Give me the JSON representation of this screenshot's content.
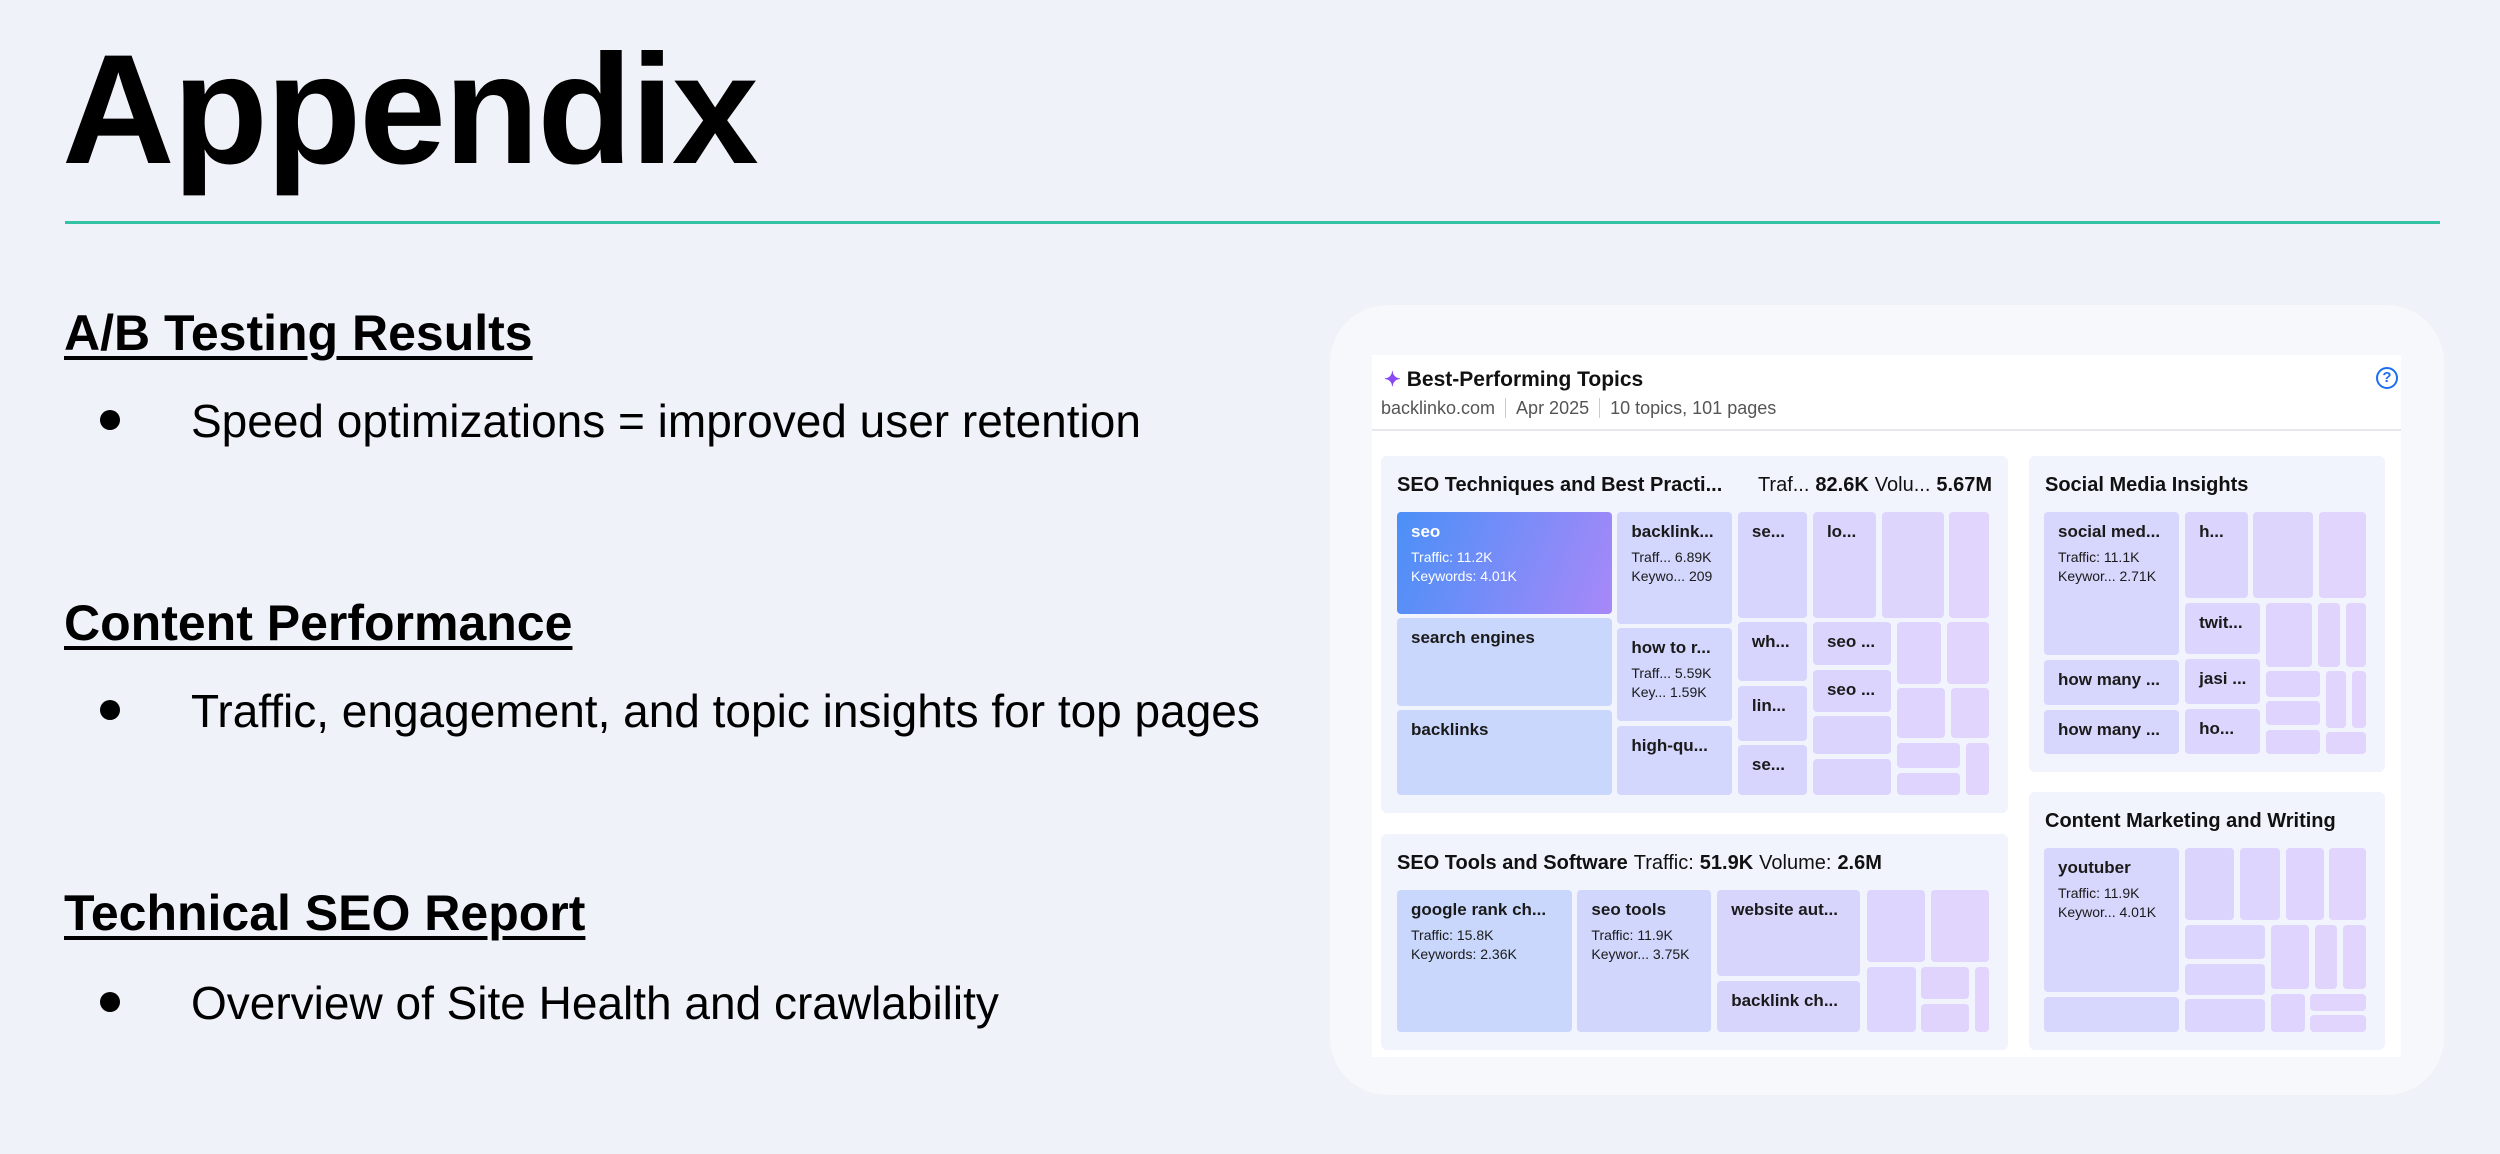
{
  "slide": {
    "title": "Appendix",
    "accent_color": "#35c2a4",
    "sections": [
      {
        "heading": "A/B Testing Results",
        "bullet": "Speed optimizations = improved user retention"
      },
      {
        "heading": "Content Performance",
        "bullet": "Traffic, engagement, and topic insights for top pages"
      },
      {
        "heading": "Technical SEO Report",
        "bullet": "Overview of Site Health and crawlability"
      }
    ]
  },
  "widget": {
    "title": "Best-Performing Topics",
    "icon": "sparkle-icon",
    "help_icon": "question-circle-icon",
    "domain": "backlinko.com",
    "date": "Apr 2025",
    "summary": "10 topics, 101 pages",
    "groups": [
      {
        "name": "SEO Techniques and Best Practi...",
        "traffic_label": "Traf...",
        "traffic": "82.6K",
        "volume_label": "Volu...",
        "volume": "5.67M",
        "tiles": [
          {
            "name": "seo",
            "s1": "Traffic: 11.2K",
            "s2": "Keywords: 4.01K"
          },
          {
            "name": "search engines"
          },
          {
            "name": "backlinks"
          },
          {
            "name": "backlink...",
            "s1": "Traff... 6.89K",
            "s2": "Keywo... 209"
          },
          {
            "name": "how to r...",
            "s1": "Traff... 5.59K",
            "s2": "Key...   1.59K"
          },
          {
            "name": "high-qu..."
          },
          {
            "name": "se..."
          },
          {
            "name": "lo..."
          },
          {
            "name": "wh..."
          },
          {
            "name": "lin..."
          },
          {
            "name": "se..."
          },
          {
            "name": "seo ..."
          },
          {
            "name": "seo ..."
          }
        ]
      },
      {
        "name": "Social Media Insights",
        "tiles": [
          {
            "name": "social med...",
            "s1": "Traffic: 11.1K",
            "s2": "Keywor...  2.71K"
          },
          {
            "name": "h..."
          },
          {
            "name": "twit..."
          },
          {
            "name": "how many ..."
          },
          {
            "name": "how many ..."
          },
          {
            "name": "jasi ..."
          },
          {
            "name": "ho..."
          }
        ]
      },
      {
        "name": "SEO Tools and Software",
        "traffic_label": "Traffic:",
        "traffic": "51.9K",
        "volume_label": "Volume:",
        "volume": "2.6M",
        "tiles": [
          {
            "name": "google rank ch...",
            "s1": "Traffic: 15.8K",
            "s2": "Keywords: 2.36K"
          },
          {
            "name": "seo tools",
            "s1": "Traffic: 11.9K",
            "s2": "Keywor... 3.75K"
          },
          {
            "name": "website aut..."
          },
          {
            "name": "backlink ch..."
          }
        ]
      },
      {
        "name": "Content Marketing and Writing",
        "tiles": [
          {
            "name": "youtuber",
            "s1": "Traffic: 11.9K",
            "s2": "Keywor...  4.01K"
          }
        ]
      }
    ],
    "colors": {
      "tile_blue": "#c5d8fd",
      "tile_purple": "#e2d4fd",
      "highlight_start": "#4a90f7",
      "highlight_end": "#a888f8"
    }
  }
}
